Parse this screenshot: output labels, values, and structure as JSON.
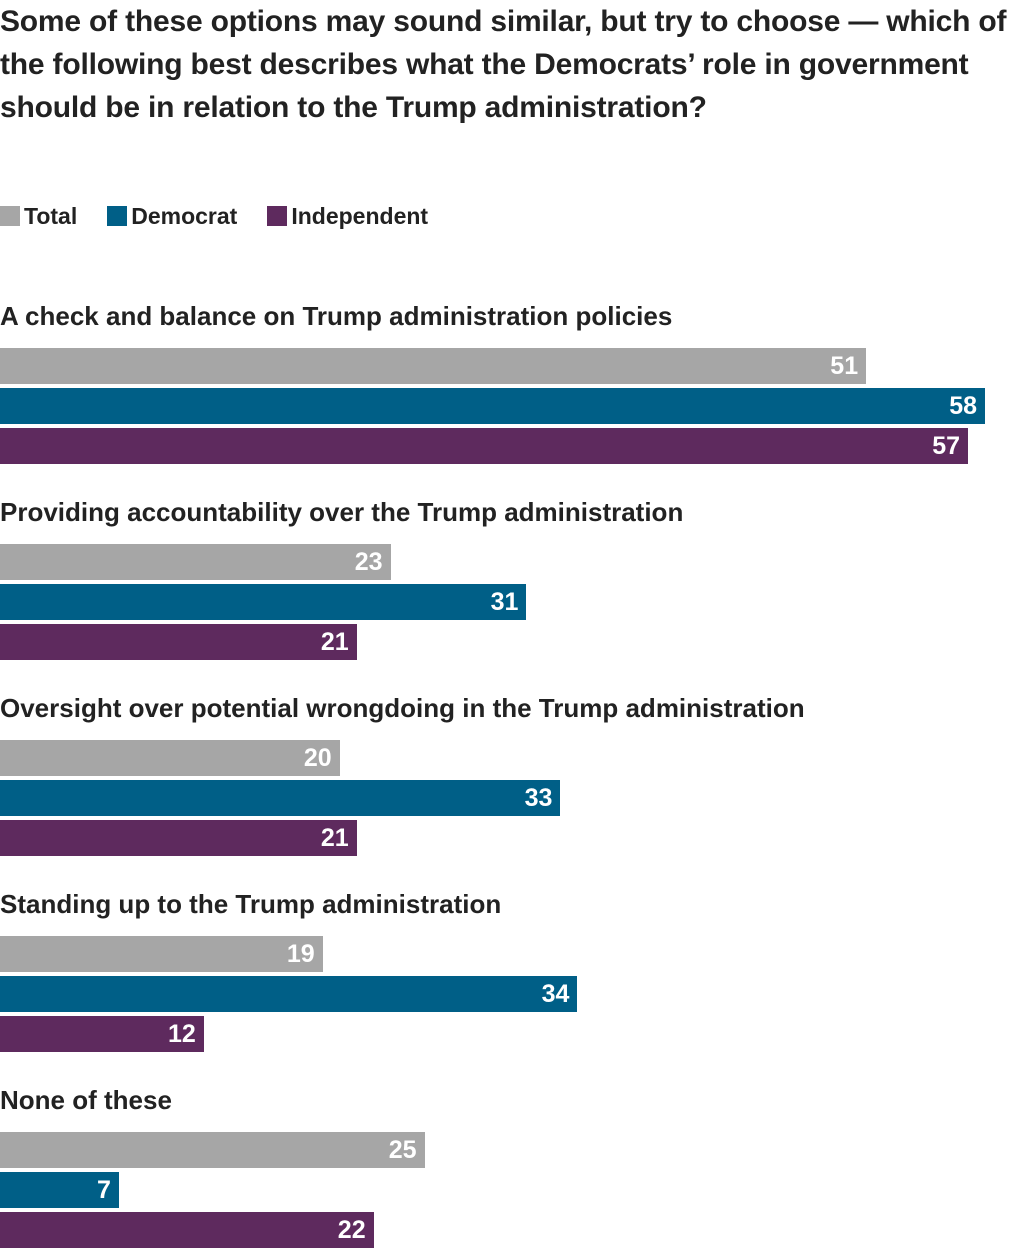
{
  "chart_data": {
    "type": "bar",
    "orientation": "horizontal",
    "title": "Some of these options may sound similar, but try to choose — which of the following best describes what the Democrats’ role in government should be in relation to the Trump administration?",
    "xlim": [
      0,
      58
    ],
    "grid": false,
    "legend_position": "top-left",
    "categories": [
      "A check and balance on Trump administration policies",
      "Providing accountability over the Trump administration",
      "Oversight over potential wrongdoing in the Trump administration",
      "Standing up to the Trump administration",
      "None of these"
    ],
    "series": [
      {
        "name": "Total",
        "color": "#a6a6a6",
        "values": [
          51,
          23,
          20,
          19,
          25
        ]
      },
      {
        "name": "Democrat",
        "color": "#005f87",
        "values": [
          58,
          31,
          33,
          34,
          7
        ]
      },
      {
        "name": "Independent",
        "color": "#5e2a5e",
        "values": [
          57,
          21,
          21,
          12,
          22
        ]
      }
    ]
  }
}
